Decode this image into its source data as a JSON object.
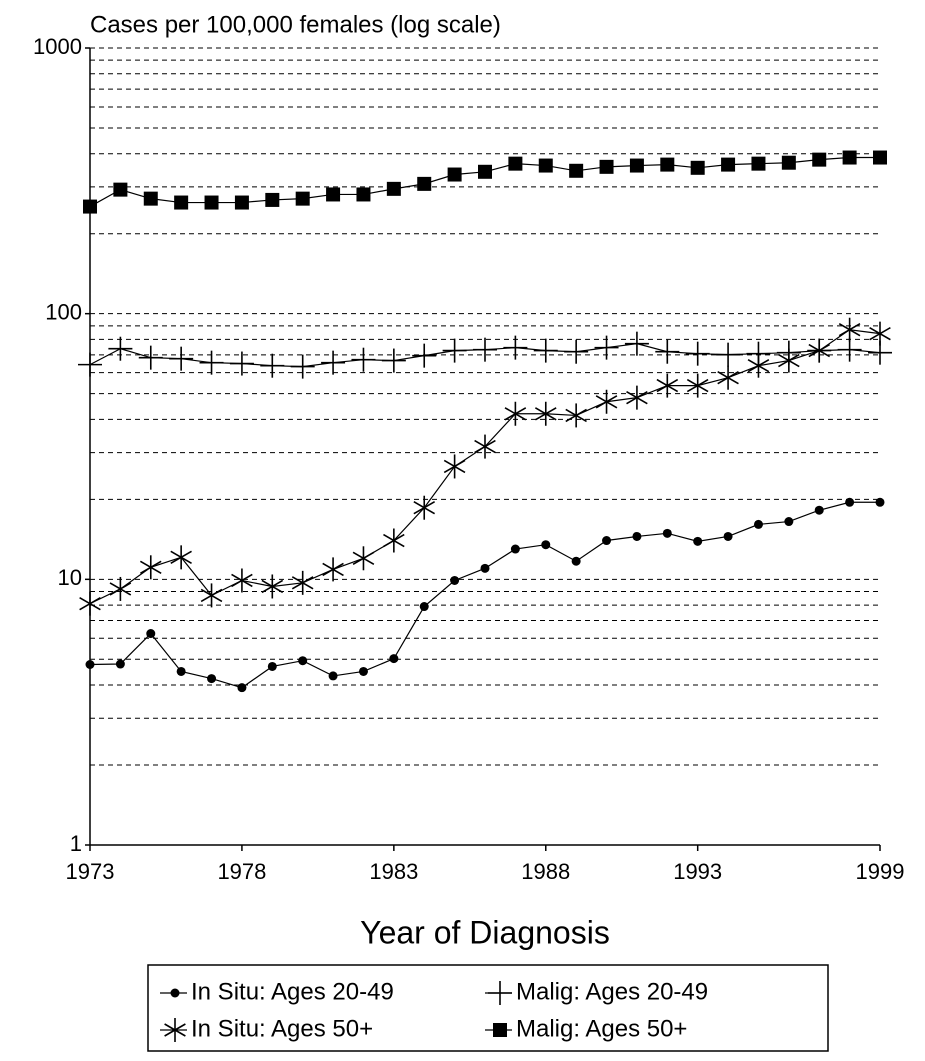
{
  "chart_data": {
    "type": "line",
    "title": "Cases per 100,000 females (log scale)",
    "x_label": "Year of Diagnosis",
    "log_scale": true,
    "grid": true,
    "legend": "bottom",
    "x": [
      1973,
      1974,
      1975,
      1976,
      1977,
      1978,
      1979,
      1980,
      1981,
      1982,
      1983,
      1984,
      1985,
      1986,
      1987,
      1988,
      1989,
      1990,
      1991,
      1992,
      1993,
      1994,
      1995,
      1996,
      1997,
      1998,
      1999
    ],
    "xlim": [
      1973,
      1999
    ],
    "xticks": [
      1973,
      1978,
      1983,
      1988,
      1993,
      1999
    ],
    "ylim": [
      1,
      1000
    ],
    "yticks": [
      1,
      10,
      100,
      1000
    ],
    "minor_yticks": [
      2,
      3,
      4,
      5,
      6,
      7,
      8,
      9,
      20,
      30,
      40,
      50,
      60,
      70,
      80,
      90,
      200,
      300,
      400,
      500,
      600,
      700,
      800,
      900
    ],
    "series": [
      {
        "name": "In Situ: Ages 20-49",
        "color": "#000000",
        "marker": "circle",
        "values": [
          4.78,
          4.8,
          6.25,
          4.5,
          4.23,
          3.91,
          4.7,
          4.94,
          4.33,
          4.5,
          5.03,
          7.9,
          9.9,
          11.0,
          13.0,
          13.5,
          11.7,
          14.0,
          14.5,
          14.9,
          13.9,
          14.5,
          16.1,
          16.5,
          18.2,
          19.5,
          19.5
        ]
      },
      {
        "name": "Malig: Ages 20-49",
        "color": "#000000",
        "marker": "plus",
        "values": [
          64.3,
          73.8,
          68.3,
          67.7,
          65.4,
          64.9,
          63.7,
          63.2,
          65.4,
          67.1,
          66.6,
          69.5,
          72.6,
          73.2,
          74.5,
          72.6,
          71.9,
          74.5,
          77.1,
          71.9,
          70.7,
          70.1,
          70.7,
          71.3,
          72.6,
          73.2,
          71.3
        ]
      },
      {
        "name": "In Situ: Ages 50+",
        "color": "#000000",
        "marker": "asterisk",
        "values": [
          8.1,
          9.2,
          11.1,
          12.1,
          8.7,
          9.9,
          9.4,
          9.7,
          10.9,
          12.0,
          14.0,
          18.6,
          26.6,
          31.6,
          42.0,
          42.0,
          41.4,
          46.6,
          48.3,
          53.6,
          53.6,
          57.4,
          63.7,
          66.6,
          72.6,
          87.0,
          84.1
        ]
      },
      {
        "name": "Malig: Ages 50+",
        "color": "#000000",
        "marker": "square",
        "values": [
          253,
          293,
          271,
          262,
          262,
          262,
          268,
          271,
          281,
          281,
          295,
          308,
          334,
          342,
          367,
          361,
          345,
          357,
          361,
          364,
          354,
          364,
          367,
          370,
          380,
          387,
          387
        ]
      }
    ]
  }
}
